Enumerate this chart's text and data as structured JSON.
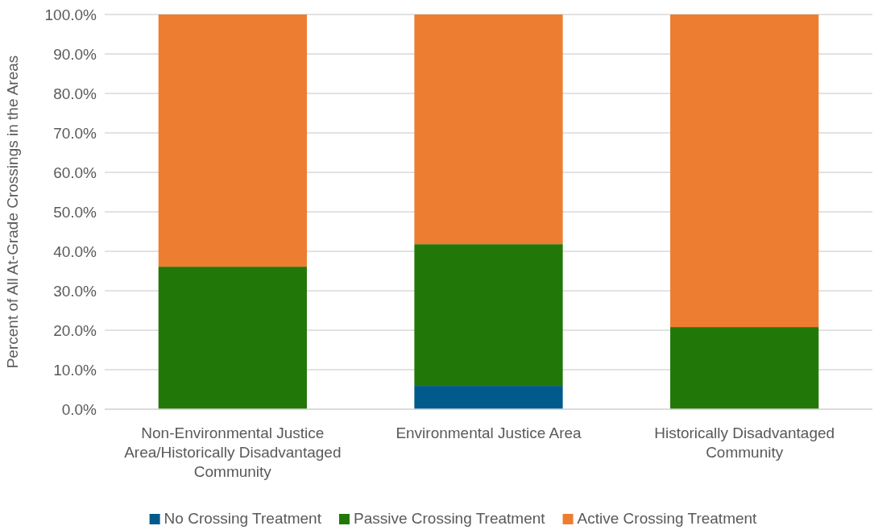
{
  "chart_data": {
    "type": "bar",
    "stacked": true,
    "ylabel": "Percent of All At-Grade Crossings in the Areas",
    "categories": [
      "Non-Environmental Justice Area/Historically Disadvantaged Community",
      "Environmental Justice Area",
      "Historically Disadvantaged Community"
    ],
    "series": [
      {
        "name": "No Crossing Treatment",
        "color": "#005a8c",
        "values": [
          0,
          5.9,
          0
        ]
      },
      {
        "name": "Passive Crossing Treatment",
        "color": "#217808",
        "values": [
          36.1,
          35.9,
          20.8
        ]
      },
      {
        "name": "Active Crossing Treatment",
        "color": "#ed7d31",
        "values": [
          63.9,
          58.2,
          79.2
        ]
      }
    ],
    "ylim": [
      0,
      100
    ],
    "yticks": [
      {
        "value": 0,
        "label": "0.0%"
      },
      {
        "value": 10,
        "label": "10.0%"
      },
      {
        "value": 20,
        "label": "20.0%"
      },
      {
        "value": 30,
        "label": "30.0%"
      },
      {
        "value": 40,
        "label": "40.0%"
      },
      {
        "value": 50,
        "label": "50.0%"
      },
      {
        "value": 60,
        "label": "60.0%"
      },
      {
        "value": 70,
        "label": "70.0%"
      },
      {
        "value": 80,
        "label": "80.0%"
      },
      {
        "value": 90,
        "label": "90.0%"
      },
      {
        "value": 100,
        "label": "100.0%"
      }
    ],
    "grid": "y",
    "legend": "bottom"
  }
}
